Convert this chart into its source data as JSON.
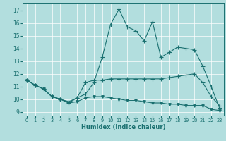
{
  "xlabel": "Humidex (Indice chaleur)",
  "background_color": "#b2dede",
  "grid_color": "#ffffff",
  "line_color": "#1a7070",
  "xlim": [
    -0.5,
    23.5
  ],
  "ylim": [
    8.7,
    17.6
  ],
  "yticks": [
    9,
    10,
    11,
    12,
    13,
    14,
    15,
    16,
    17
  ],
  "xticks": [
    0,
    1,
    2,
    3,
    4,
    5,
    6,
    7,
    8,
    9,
    10,
    11,
    12,
    13,
    14,
    15,
    16,
    17,
    18,
    19,
    20,
    21,
    22,
    23
  ],
  "x": [
    0,
    1,
    2,
    3,
    4,
    5,
    6,
    7,
    8,
    9,
    10,
    11,
    12,
    13,
    14,
    15,
    16,
    17,
    18,
    19,
    20,
    21,
    22,
    23
  ],
  "line_top": [
    11.5,
    11.1,
    10.8,
    10.2,
    10.0,
    9.7,
    10.1,
    10.4,
    11.3,
    13.3,
    15.9,
    17.1,
    15.7,
    15.4,
    14.6,
    16.1,
    13.3,
    13.7,
    14.1,
    14.0,
    13.9,
    12.6,
    11.0,
    9.3
  ],
  "line_mid": [
    11.5,
    11.1,
    10.8,
    10.2,
    10.0,
    9.8,
    10.1,
    11.3,
    11.5,
    11.5,
    11.6,
    11.6,
    11.6,
    11.6,
    11.6,
    11.6,
    11.6,
    11.7,
    11.8,
    11.9,
    12.0,
    11.3,
    10.2,
    9.5
  ],
  "line_bot": [
    11.5,
    11.1,
    10.8,
    10.2,
    10.0,
    9.7,
    9.8,
    10.1,
    10.2,
    10.2,
    10.1,
    10.0,
    9.9,
    9.9,
    9.8,
    9.7,
    9.7,
    9.6,
    9.6,
    9.5,
    9.5,
    9.5,
    9.2,
    9.1
  ]
}
